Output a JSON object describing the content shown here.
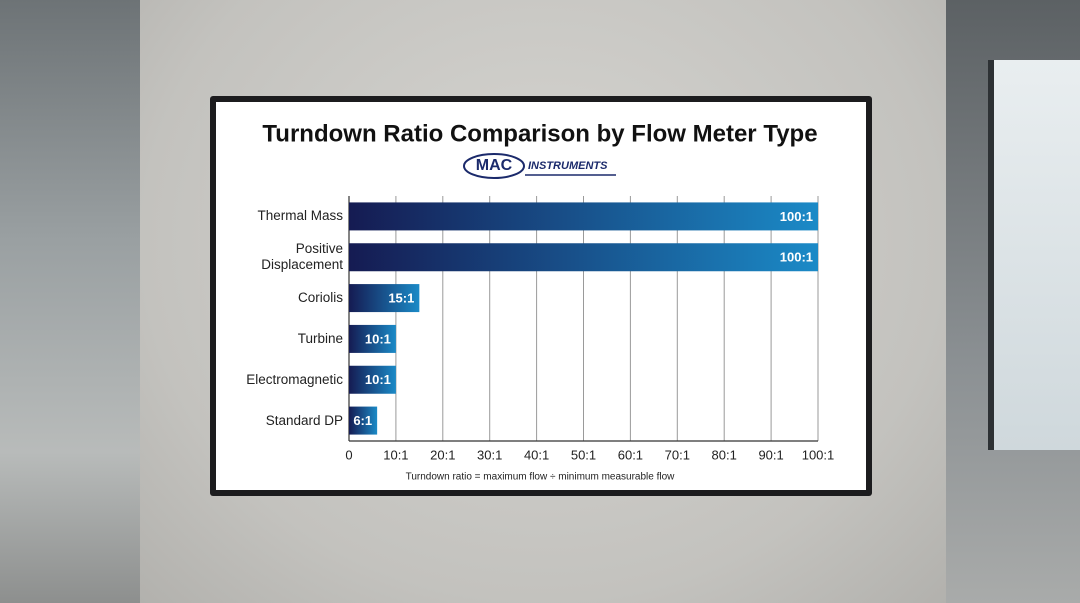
{
  "logo": {
    "mark": "MAC",
    "text": "INSTRUMENTS"
  },
  "chart_data": {
    "type": "bar",
    "orientation": "horizontal",
    "title": "Turndown Ratio Comparison by Flow Meter Type",
    "note": "Turndown ratio = maximum flow ÷ minimum measurable flow",
    "categories": [
      "Thermal Mass",
      "Positive Displacement",
      "Coriolis",
      "Turbine",
      "Electromagnetic",
      "Standard DP"
    ],
    "values": [
      100,
      100,
      15,
      10,
      10,
      6
    ],
    "value_labels": [
      "100:1",
      "100:1",
      "15:1",
      "10:1",
      "10:1",
      "6:1"
    ],
    "colors": [
      "#151b52",
      "#1b8ac7"
    ],
    "xlim": [
      0,
      100
    ],
    "xticks": [
      0,
      {
        "value": 10,
        "label": "10:1"
      },
      {
        "value": 20,
        "label": "20:1"
      },
      {
        "value": 30,
        "label": "30:1"
      },
      {
        "value": 40,
        "label": "40:1"
      },
      {
        "value": 50,
        "label": "50:1"
      },
      {
        "value": 60,
        "label": "60:1"
      },
      {
        "value": 70,
        "label": "70:1"
      },
      {
        "value": 80,
        "label": "80:1"
      },
      {
        "value": 90,
        "label": "90:1"
      },
      {
        "value": 100,
        "label": "100:1"
      }
    ],
    "grid": true
  }
}
